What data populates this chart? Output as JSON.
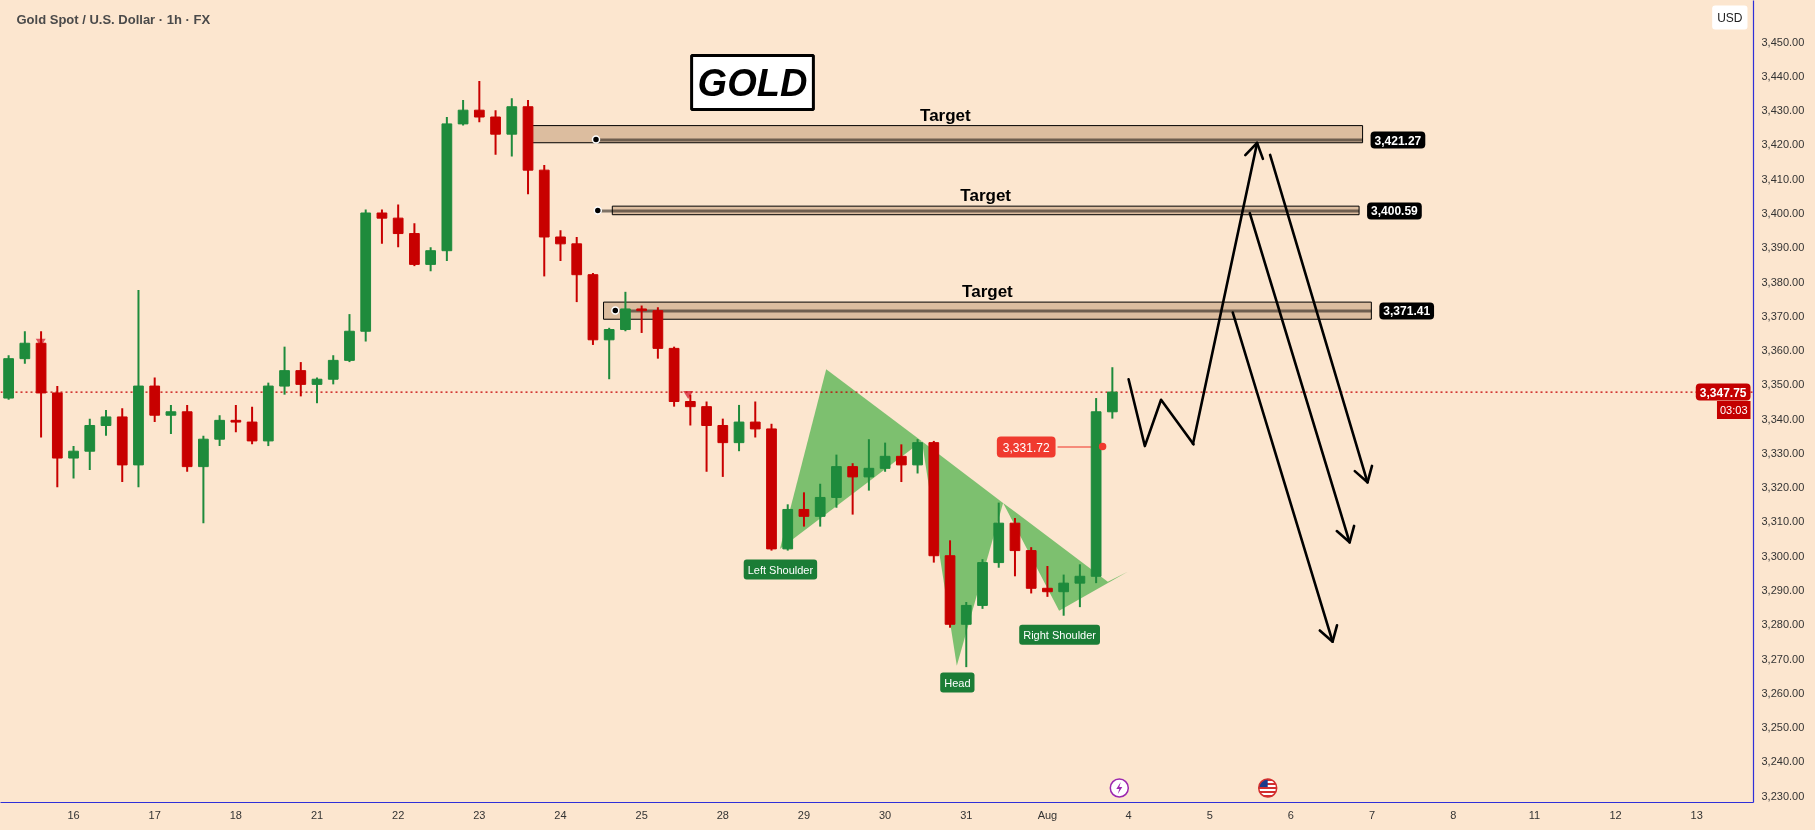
{
  "chart_data": {
    "type": "candlestick",
    "title": "Gold Spot / U.S. Dollar · 1h · FX",
    "ylabel": "USD",
    "categories": [
      null,
      null,
      null,
      null,
      "16",
      null,
      null,
      null,
      null,
      "17",
      null,
      null,
      null,
      null,
      "18",
      null,
      null,
      null,
      null,
      "21",
      null,
      null,
      null,
      null,
      "22",
      null,
      null,
      null,
      null,
      "23",
      null,
      null,
      null,
      null,
      "24",
      null,
      null,
      null,
      null,
      "25",
      null,
      null,
      null,
      null,
      "28",
      null,
      null,
      null,
      null,
      "29",
      null,
      null,
      null,
      null,
      "30",
      null,
      null,
      null,
      null,
      "31",
      null,
      null,
      null,
      null,
      "Aug",
      null,
      null,
      null,
      null,
      "4",
      null,
      null,
      null,
      null,
      "5",
      null,
      null,
      null,
      null,
      "6",
      null,
      null,
      null,
      null,
      "7",
      null,
      null,
      null,
      null,
      "8",
      null,
      null,
      null,
      null,
      "11",
      null,
      null,
      null,
      null,
      "12",
      null,
      null,
      null,
      null,
      "13",
      null,
      null,
      null
    ],
    "ylim": [
      3228,
      3462
    ],
    "yticks": [
      {
        "value": 3230,
        "label": "3,230.00"
      },
      {
        "value": 3240,
        "label": "3,240.00"
      },
      {
        "value": 3250,
        "label": "3,250.00"
      },
      {
        "value": 3260,
        "label": "3,260.00"
      },
      {
        "value": 3270,
        "label": "3,270.00"
      },
      {
        "value": 3280,
        "label": "3,280.00"
      },
      {
        "value": 3290,
        "label": "3,290.00"
      },
      {
        "value": 3300,
        "label": "3,300.00"
      },
      {
        "value": 3310,
        "label": "3,310.00"
      },
      {
        "value": 3320,
        "label": "3,320.00"
      },
      {
        "value": 3330,
        "label": "3,330.00"
      },
      {
        "value": 3340,
        "label": "3,340.00"
      },
      {
        "value": 3350,
        "label": "3,350.00"
      },
      {
        "value": 3360,
        "label": "3,360.00"
      },
      {
        "value": 3370,
        "label": "3,370.00"
      },
      {
        "value": 3380,
        "label": "3,380.00"
      },
      {
        "value": 3390,
        "label": "3,390.00"
      },
      {
        "value": 3400,
        "label": "3,400.00"
      },
      {
        "value": 3410,
        "label": "3,410.00"
      },
      {
        "value": 3420,
        "label": "3,420.00"
      },
      {
        "value": 3430,
        "label": "3,430.00"
      },
      {
        "value": 3440,
        "label": "3,440.00"
      },
      {
        "value": 3450,
        "label": "3,450.00"
      }
    ],
    "grid": false,
    "ohlc": [
      [
        3346,
        3358.5,
        3345.5,
        3357.5
      ],
      [
        3357.5,
        3365.5,
        3356,
        3362
      ],
      [
        3362,
        3365.5,
        3334.5,
        3347.5
      ],
      [
        3347.5,
        3349.5,
        3320,
        3328.5
      ],
      [
        3328.5,
        3332,
        3322.5,
        3330.5
      ],
      [
        3330.5,
        3340,
        3325,
        3338
      ],
      [
        3338,
        3342.5,
        3335,
        3340.5
      ],
      [
        3340.5,
        3343,
        3321.5,
        3326.5
      ],
      [
        3326.5,
        3377.5,
        3320,
        3349.5
      ],
      [
        3349.5,
        3352,
        3339,
        3341
      ],
      [
        3341,
        3344,
        3335.5,
        3342
      ],
      [
        3342,
        3344,
        3324.5,
        3326
      ],
      [
        3326,
        3335,
        3309.5,
        3334
      ],
      [
        3334,
        3341,
        3332,
        3339.5
      ],
      [
        3339.5,
        3344,
        3336,
        3339
      ],
      [
        3339,
        3343.5,
        3332.5,
        3333.5
      ],
      [
        3333.5,
        3350.5,
        3332,
        3349.5
      ],
      [
        3349.5,
        3361,
        3347,
        3354
      ],
      [
        3354,
        3356.5,
        3346.5,
        3350
      ],
      [
        3350,
        3352,
        3344.5,
        3351.5
      ],
      [
        3351.5,
        3358.5,
        3350,
        3357
      ],
      [
        3357,
        3370.5,
        3356.5,
        3365.5
      ],
      [
        3365.5,
        3401,
        3362.5,
        3400
      ],
      [
        3400,
        3401,
        3391,
        3398.5
      ],
      [
        3398.5,
        3402.5,
        3390,
        3394
      ],
      [
        3394,
        3397,
        3384.5,
        3385
      ],
      [
        3385,
        3390,
        3383,
        3389
      ],
      [
        3389,
        3428,
        3386,
        3426
      ],
      [
        3426,
        3433,
        3425.5,
        3430
      ],
      [
        3430,
        3438.5,
        3426.5,
        3428
      ],
      [
        3428,
        3430,
        3417,
        3423
      ],
      [
        3423,
        3433.5,
        3416.5,
        3431
      ],
      [
        3431,
        3433,
        3405.5,
        3412.5
      ],
      [
        3412.5,
        3414,
        3381.5,
        3393
      ],
      [
        3393,
        3395,
        3386,
        3391
      ],
      [
        3391,
        3393,
        3374,
        3382
      ],
      [
        3382,
        3382.5,
        3361.5,
        3363
      ],
      [
        3363,
        3366.5,
        3351.5,
        3366
      ],
      [
        3366,
        3377,
        3365.5,
        3372
      ],
      [
        3372,
        3373,
        3365,
        3371.5
      ],
      [
        3371.5,
        3372.5,
        3357.5,
        3360.5
      ],
      [
        3360.5,
        3361,
        3343.5,
        3345
      ],
      [
        3345,
        3347,
        3338,
        3343.5
      ],
      [
        3343.5,
        3345,
        3324.5,
        3338
      ],
      [
        3338,
        3340,
        3323,
        3333
      ],
      [
        3333,
        3344,
        3330.5,
        3339
      ],
      [
        3339,
        3345,
        3334.5,
        3337
      ],
      [
        3337,
        3338.5,
        3301.5,
        3302
      ],
      [
        3302,
        3315,
        3301.5,
        3313.5
      ],
      [
        3313.5,
        3318.5,
        3308.5,
        3311.5
      ],
      [
        3311.5,
        3321,
        3308.5,
        3317
      ],
      [
        3317,
        3329.5,
        3314,
        3326
      ],
      [
        3326,
        3327,
        3312,
        3323
      ],
      [
        3323,
        3334,
        3319,
        3325.5
      ],
      [
        3325.5,
        3333,
        3324.5,
        3329
      ],
      [
        3329,
        3332.5,
        3321.5,
        3326.5
      ],
      [
        3326.5,
        3334,
        3324,
        3333
      ],
      [
        3333,
        3333.5,
        3298,
        3300
      ],
      [
        3300,
        3304.5,
        3279,
        3280
      ],
      [
        3280,
        3286.5,
        3267.5,
        3285.5
      ],
      [
        3285.5,
        3299,
        3284.5,
        3298
      ],
      [
        3298,
        3315.5,
        3296.5,
        3309.5
      ],
      [
        3309.5,
        3311,
        3294,
        3301.5
      ],
      [
        3301.5,
        3302.5,
        3289,
        3290.5
      ],
      [
        3290.5,
        3297,
        3288,
        3289.5
      ],
      [
        3289.5,
        3294.5,
        3282.5,
        3292
      ],
      [
        3292,
        3297.5,
        3285,
        3294
      ],
      [
        3294,
        3346,
        3292,
        3342
      ],
      [
        3342,
        3355,
        3340,
        3347.75
      ],
      null,
      null,
      null,
      null,
      null,
      null,
      null,
      null,
      null,
      null,
      null,
      null,
      null,
      null,
      null,
      null,
      null,
      null,
      null,
      null,
      null,
      null,
      null,
      null,
      null,
      null,
      null,
      null,
      null,
      null,
      null,
      null,
      null,
      null,
      null,
      null,
      null,
      null,
      null
    ],
    "colors": [
      "#1e8b3c",
      "#1e8b3c",
      "#c80000",
      "#c80000",
      "#1e8b3c",
      "#1e8b3c",
      "#1e8b3c",
      "#c80000",
      "#1e8b3c",
      "#c80000",
      "#1e8b3c",
      "#c80000",
      "#1e8b3c",
      "#1e8b3c",
      "#c80000",
      "#c80000",
      "#1e8b3c",
      "#1e8b3c",
      "#c80000",
      "#1e8b3c",
      "#1e8b3c",
      "#1e8b3c",
      "#1e8b3c",
      "#c80000",
      "#c80000",
      "#c80000",
      "#1e8b3c",
      "#1e8b3c",
      "#1e8b3c",
      "#c80000",
      "#c80000",
      "#1e8b3c",
      "#c80000",
      "#c80000",
      "#c80000",
      "#c80000",
      "#c80000",
      "#1e8b3c",
      "#1e8b3c",
      "#c80000",
      "#c80000",
      "#c80000",
      "#c80000",
      "#c80000",
      "#c80000",
      "#1e8b3c",
      "#c80000",
      "#c80000",
      "#1e8b3c",
      "#c80000",
      "#1e8b3c",
      "#1e8b3c",
      "#c80000",
      "#1e8b3c",
      "#1e8b3c",
      "#c80000",
      "#1e8b3c",
      "#c80000",
      "#c80000",
      "#1e8b3c",
      "#1e8b3c",
      "#1e8b3c",
      "#c80000",
      "#c80000",
      "#c80000",
      "#1e8b3c",
      "#1e8b3c",
      "#1e8b3c",
      "#1e8b3c",
      null,
      null,
      null,
      null,
      null,
      null,
      null,
      null,
      null,
      null,
      null,
      null,
      null,
      null,
      null,
      null,
      null,
      null,
      null,
      null,
      null,
      null,
      null,
      null,
      null,
      null,
      null,
      null,
      null,
      null,
      null,
      null,
      null,
      null,
      null,
      null,
      null,
      null,
      null
    ],
    "series": [
      {
        "type": "line",
        "color": "#000000",
        "values": [
          null,
          null,
          null,
          null,
          null,
          null,
          null,
          null,
          null,
          null,
          null,
          null,
          null,
          null,
          null,
          null,
          null,
          null,
          null,
          null,
          null,
          null,
          null,
          null,
          null,
          null,
          null,
          null,
          null,
          null,
          null,
          null,
          null,
          null,
          null,
          null,
          null,
          null,
          null,
          null,
          null,
          null,
          null,
          null,
          null,
          null,
          null,
          null,
          null,
          null,
          null,
          null,
          null,
          null,
          null,
          null,
          null,
          null,
          null,
          null,
          null,
          null,
          null,
          null,
          null,
          null,
          null,
          null,
          null,
          3351.5,
          3332,
          3345.5,
          3339,
          3332.5,
          null,
          null,
          null,
          null,
          null,
          null,
          null,
          null,
          null,
          null,
          null,
          null,
          null,
          null,
          null,
          null,
          null,
          null,
          null,
          null,
          null,
          null,
          null,
          null,
          null,
          null,
          null,
          null,
          null,
          null,
          null,
          null,
          null,
          null
        ]
      }
    ],
    "bands": [
      {
        "axis": "y",
        "from": 3420.5,
        "to": 3425.5,
        "label": "Target",
        "color": "#d8b899"
      },
      {
        "axis": "y",
        "from": 3399.5,
        "to": 3402,
        "label": "Target",
        "color": "#d8b899"
      },
      {
        "axis": "y",
        "from": 3369,
        "to": 3374,
        "label": "Target",
        "color": "#d8b899"
      }
    ],
    "ref_lines": [
      {
        "axis": "y",
        "value": 3421.27,
        "label": "3,421.27",
        "color": "#000000"
      },
      {
        "axis": "y",
        "value": 3400.59,
        "label": "3,400.59",
        "color": "#000000"
      },
      {
        "axis": "y",
        "value": 3371.41,
        "label": "3,371.41",
        "color": "#000000"
      },
      {
        "axis": "y",
        "value": 3347.75,
        "label": "3,347.75",
        "color": "#c40000",
        "line_style": "dotted"
      },
      {
        "axis": "y",
        "value": 3331.72,
        "label": "3,331.72",
        "color": "#f03a2e"
      }
    ],
    "annotations": [
      "GOLD",
      "03:03",
      {
        "text": "Left Shoulder",
        "y": 3301.5
      },
      "Head",
      {
        "text": "Right Shoulder",
        "y": 3282.5
      }
    ]
  }
}
